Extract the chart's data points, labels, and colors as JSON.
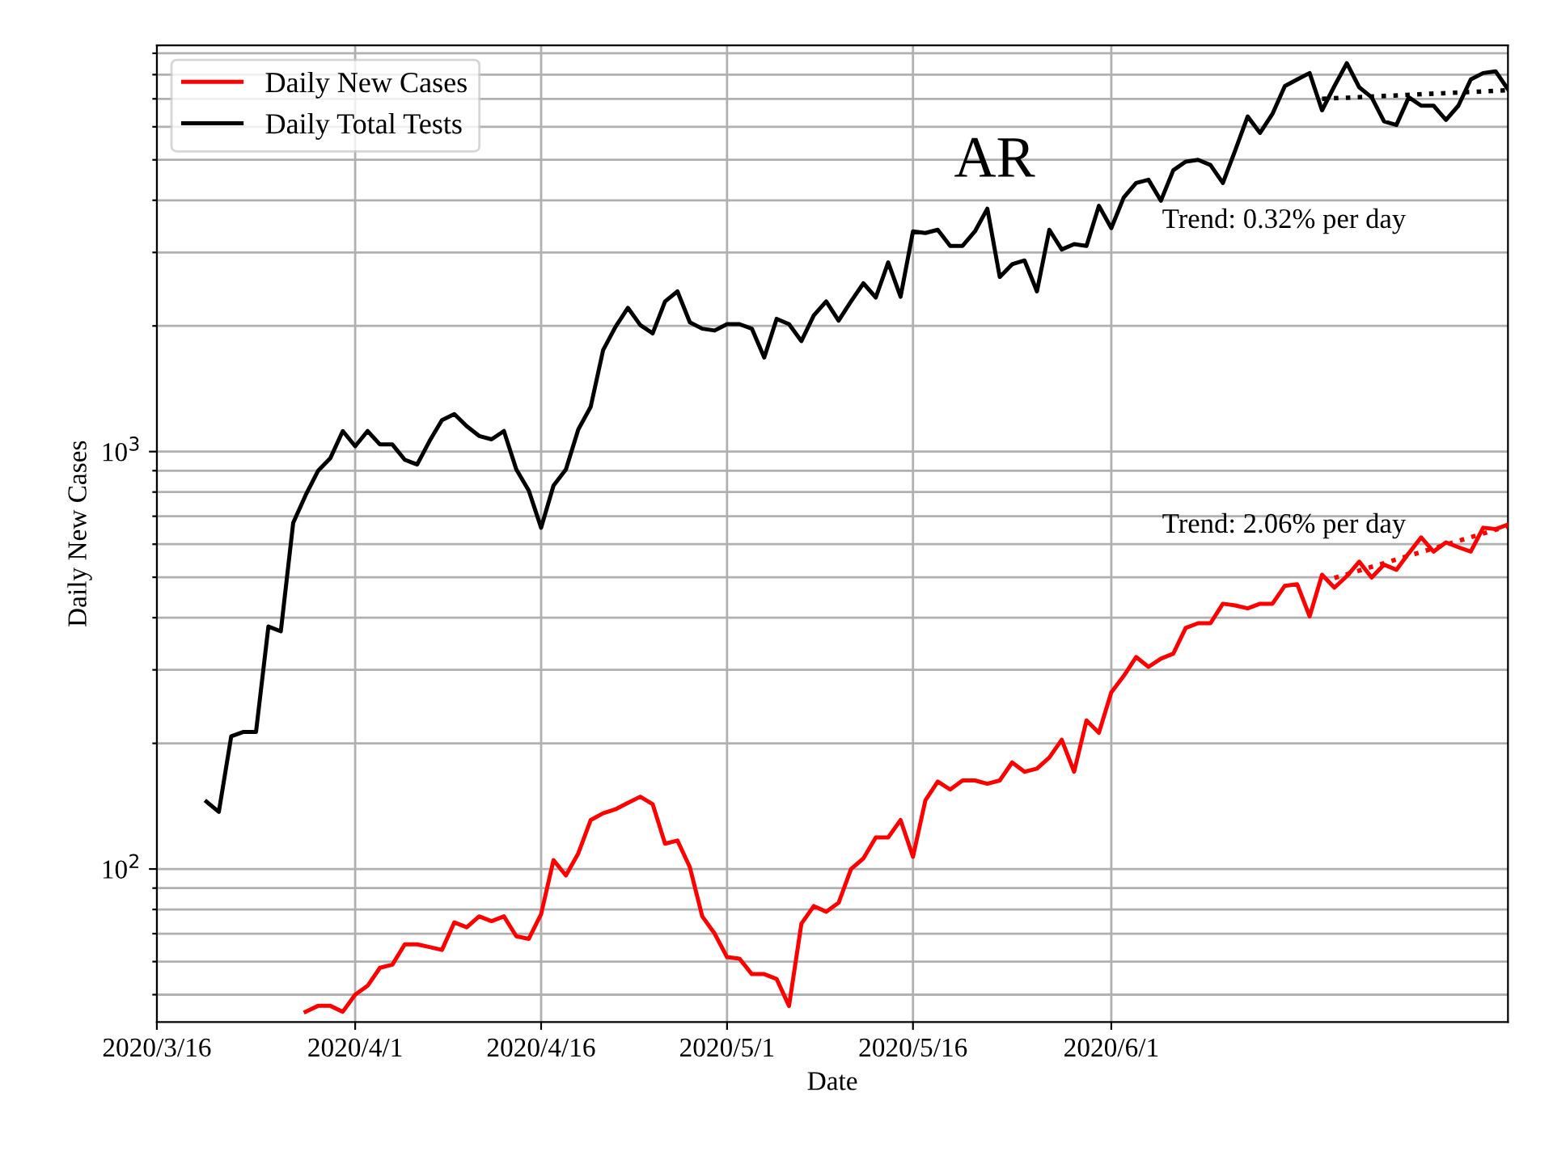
{
  "chart_data": {
    "type": "line",
    "title": "AR",
    "xlabel": "Date",
    "ylabel": "Daily New Cases",
    "x": [
      "2020-03-20",
      "2020-03-21",
      "2020-03-22",
      "2020-03-23",
      "2020-03-24",
      "2020-03-25",
      "2020-03-26",
      "2020-03-27",
      "2020-03-28",
      "2020-03-29",
      "2020-03-30",
      "2020-03-31",
      "2020-04-01",
      "2020-04-02",
      "2020-04-03",
      "2020-04-04",
      "2020-04-05",
      "2020-04-06",
      "2020-04-07",
      "2020-04-08",
      "2020-04-09",
      "2020-04-10",
      "2020-04-11",
      "2020-04-12",
      "2020-04-13",
      "2020-04-14",
      "2020-04-15",
      "2020-04-16",
      "2020-04-17",
      "2020-04-18",
      "2020-04-19",
      "2020-04-20",
      "2020-04-21",
      "2020-04-22",
      "2020-04-23",
      "2020-04-24",
      "2020-04-25",
      "2020-04-26",
      "2020-04-27",
      "2020-04-28",
      "2020-04-29",
      "2020-04-30",
      "2020-05-01",
      "2020-05-02",
      "2020-05-03",
      "2020-05-04",
      "2020-05-05",
      "2020-05-06",
      "2020-05-07",
      "2020-05-08",
      "2020-05-09",
      "2020-05-10",
      "2020-05-11",
      "2020-05-12",
      "2020-05-13",
      "2020-05-14",
      "2020-05-15",
      "2020-05-16",
      "2020-05-17",
      "2020-05-18",
      "2020-05-19",
      "2020-05-20",
      "2020-05-21",
      "2020-05-22",
      "2020-05-23",
      "2020-05-24",
      "2020-05-25",
      "2020-05-26",
      "2020-05-27",
      "2020-05-28",
      "2020-05-29",
      "2020-05-30",
      "2020-05-31",
      "2020-06-01",
      "2020-06-02",
      "2020-06-03",
      "2020-06-04",
      "2020-06-05",
      "2020-06-06",
      "2020-06-07",
      "2020-06-08",
      "2020-06-09",
      "2020-06-10",
      "2020-06-11",
      "2020-06-12",
      "2020-06-13",
      "2020-06-14",
      "2020-06-15",
      "2020-06-16",
      "2020-06-17",
      "2020-06-18",
      "2020-06-19",
      "2020-06-20",
      "2020-06-21",
      "2020-06-22",
      "2020-06-23",
      "2020-06-24",
      "2020-06-25",
      "2020-06-26",
      "2020-06-27",
      "2020-06-28",
      "2020-06-29",
      "2020-06-30",
      "2020-07-01",
      "2020-07-02",
      "2020-07-03"
    ],
    "series": [
      {
        "name": "Daily New Cases",
        "color": "#ff0000",
        "values": [
          null,
          null,
          null,
          null,
          null,
          null,
          null,
          null,
          45.5,
          47,
          47,
          45.5,
          50,
          52.5,
          58,
          59,
          66,
          66,
          65,
          64,
          74.5,
          72.5,
          77,
          75,
          77,
          69,
          68,
          78,
          105,
          96.5,
          109,
          131,
          136,
          139,
          144,
          149,
          143,
          115,
          117,
          101,
          77,
          70,
          61.5,
          61,
          56,
          56,
          54.5,
          47,
          74,
          81.5,
          79,
          83,
          100,
          106,
          119,
          119,
          131,
          107,
          146,
          162,
          155,
          163,
          163,
          160,
          163,
          180,
          171,
          174,
          185,
          204,
          171,
          227,
          212,
          265,
          290,
          322,
          305,
          319,
          328,
          378,
          388,
          388,
          432,
          428,
          421,
          432,
          432,
          477,
          481,
          403,
          507,
          472,
          503,
          545,
          499,
          536,
          521,
          571,
          623,
          576,
          606,
          590,
          576,
          657,
          652,
          669
        ]
      },
      {
        "name": "Daily Total Tests",
        "color": "#000000",
        "values": [
          145,
          137,
          208,
          213,
          213,
          381,
          371,
          675,
          786,
          899,
          965,
          1120,
          1030,
          1120,
          1040,
          1040,
          956,
          931,
          1060,
          1190,
          1230,
          1150,
          1090,
          1070,
          1120,
          906,
          807,
          657,
          829,
          906,
          1130,
          1280,
          1750,
          1990,
          2210,
          2010,
          1920,
          2290,
          2420,
          2040,
          1970,
          1950,
          2020,
          2020,
          1970,
          1680,
          2080,
          2020,
          1840,
          2120,
          2290,
          2060,
          2290,
          2530,
          2340,
          2840,
          2350,
          3370,
          3340,
          3400,
          3110,
          3110,
          3370,
          3820,
          2620,
          2810,
          2870,
          2420,
          3400,
          3050,
          3140,
          3110,
          3880,
          3430,
          4060,
          4400,
          4480,
          3990,
          4720,
          4950,
          5000,
          4860,
          4400,
          5270,
          6350,
          5800,
          6440,
          7510,
          7790,
          8070,
          6570,
          7510,
          8520,
          7460,
          7060,
          6180,
          6060,
          7060,
          6740,
          6740,
          6230,
          6740,
          7790,
          8070,
          8150,
          7380
        ]
      },
      {
        "type": "line",
        "color": "#ff0000",
        "line_style": "dotted",
        "x": [
          "2020-06-19",
          "2020-07-03"
        ],
        "values": [
          498,
          663
        ]
      },
      {
        "type": "line",
        "color": "#000000",
        "line_style": "dotted",
        "x": [
          "2020-06-18",
          "2020-07-03"
        ],
        "values": [
          7000,
          7340
        ]
      }
    ],
    "annotations": [
      "Trend: 0.32% per day",
      "Trend: 2.06% per day"
    ],
    "log": "y",
    "grid": true,
    "legend": "top left",
    "line_style": "solid",
    "marker": "none",
    "xlim": [
      "2020-03-16",
      "2020-07-03"
    ],
    "xticks": [
      {
        "value": "2020-03-16",
        "label": "2020/3/16"
      },
      {
        "value": "2020-04-01",
        "label": "2020/4/1"
      },
      {
        "value": "2020-04-16",
        "label": "2020/4/16"
      },
      {
        "value": "2020-05-01",
        "label": "2020/5/1"
      },
      {
        "value": "2020-05-16",
        "label": "2020/5/16"
      },
      {
        "value": "2020-06-01",
        "label": "2020/6/1"
      }
    ],
    "ylim": [
      43,
      9400
    ],
    "yticks": [
      {
        "value": 50,
        "label": null
      },
      {
        "value": 60,
        "label": null
      },
      {
        "value": 70,
        "label": null
      },
      {
        "value": 80,
        "label": null
      },
      {
        "value": 90,
        "label": null
      },
      {
        "value": 100,
        "label": "10$^{2}$"
      },
      {
        "value": 200,
        "label": null
      },
      {
        "value": 300,
        "label": null
      },
      {
        "value": 400,
        "label": null
      },
      {
        "value": 500,
        "label": null
      },
      {
        "value": 600,
        "label": null
      },
      {
        "value": 700,
        "label": null
      },
      {
        "value": 800,
        "label": null
      },
      {
        "value": 900,
        "label": null
      },
      {
        "value": 1000,
        "label": "10$^{3}$"
      },
      {
        "value": 2000,
        "label": null
      },
      {
        "value": 3000,
        "label": null
      },
      {
        "value": 4000,
        "label": null
      },
      {
        "value": 5000,
        "label": null
      },
      {
        "value": 6000,
        "label": null
      },
      {
        "value": 7000,
        "label": null
      },
      {
        "value": 8000,
        "label": null
      },
      {
        "value": 9000,
        "label": null
      }
    ]
  }
}
